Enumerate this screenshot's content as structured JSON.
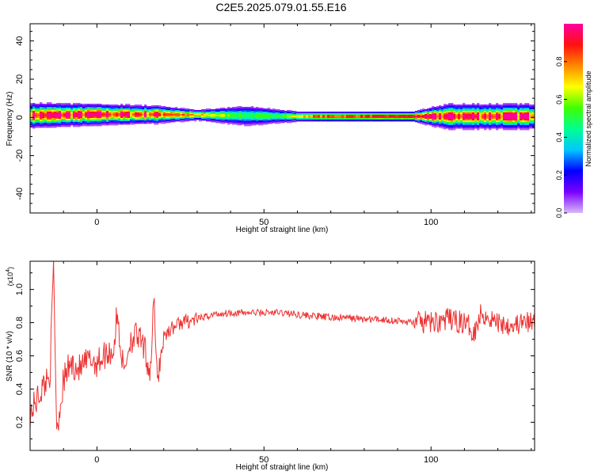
{
  "title": "C2E5.2025.079.01.55.E16",
  "colors": {
    "snr_line": "#ee3333",
    "colormap": [
      "#d8b8f8",
      "#7a00ff",
      "#0000ff",
      "#00c8ff",
      "#00ff90",
      "#40ff00",
      "#ffff00",
      "#ff8800",
      "#ff1010",
      "#ff00a0"
    ]
  },
  "chart_data": [
    {
      "type": "heatmap",
      "xlabel": "Height of straight line (km)",
      "ylabel": "Frequency (Hz)",
      "xlim": [
        -20,
        131
      ],
      "ylim": [
        -50,
        49
      ],
      "xticks": [
        0,
        50,
        100
      ],
      "yticks": [
        -40,
        -20,
        0,
        20,
        40
      ],
      "colorbar": {
        "label": "Normalized spectral amplitude",
        "range": [
          0.0,
          1.0
        ],
        "ticks": [
          "0.0",
          "0.2",
          "0.4",
          "0.6",
          "0.8"
        ]
      },
      "description_points": {
        "ridge_frequency_hz": [
          {
            "x": -20,
            "f": 1.0
          },
          {
            "x": 0,
            "f": 1.5
          },
          {
            "x": 20,
            "f": 1.5
          },
          {
            "x": 40,
            "f": 1.0
          },
          {
            "x": 60,
            "f": 0.5
          },
          {
            "x": 80,
            "f": 0.5
          },
          {
            "x": 100,
            "f": 0.5
          },
          {
            "x": 131,
            "f": 0.5
          }
        ],
        "peak_amplitude": [
          {
            "x": -20,
            "a": 0.95
          },
          {
            "x": 0,
            "a": 0.95
          },
          {
            "x": 20,
            "a": 0.9
          },
          {
            "x": 30,
            "a": 0.75
          },
          {
            "x": 45,
            "a": 0.5
          },
          {
            "x": 55,
            "a": 0.55
          },
          {
            "x": 65,
            "a": 0.85
          },
          {
            "x": 90,
            "a": 0.95
          },
          {
            "x": 131,
            "a": 0.95
          }
        ],
        "spread_hz": [
          {
            "x": -20,
            "s": 7
          },
          {
            "x": 18,
            "s": 5
          },
          {
            "x": 30,
            "s": 3
          },
          {
            "x": 45,
            "s": 6
          },
          {
            "x": 60,
            "s": 3
          },
          {
            "x": 95,
            "s": 3
          },
          {
            "x": 105,
            "s": 7
          },
          {
            "x": 131,
            "s": 7
          }
        ]
      }
    },
    {
      "type": "line",
      "xlabel": "Height of straight line (km)",
      "ylabel": "SNR (10 * v/v)",
      "y_multiplier": "(x10",
      "y_multiplier_exp": "4",
      "y_multiplier_close": ")",
      "xlim": [
        -20,
        131
      ],
      "ylim": [
        0.03,
        1.17
      ],
      "xticks": [
        0,
        50,
        100
      ],
      "yticks": [
        0.2,
        0.4,
        0.6,
        0.8,
        1.0
      ],
      "series": [
        {
          "x": [
            -20,
            -17,
            -14,
            -13,
            -12,
            -10,
            -8,
            -5,
            -2,
            0,
            3,
            5,
            6,
            8,
            10,
            12,
            14,
            16,
            17,
            18,
            20,
            22,
            25,
            30,
            35,
            40,
            45,
            50,
            55,
            60,
            65,
            70,
            75,
            80,
            85,
            90,
            95,
            100,
            105,
            110,
            113,
            115,
            120,
            125,
            131
          ],
          "y": [
            0.25,
            0.38,
            0.5,
            1.15,
            0.15,
            0.45,
            0.55,
            0.52,
            0.58,
            0.56,
            0.62,
            0.63,
            0.85,
            0.5,
            0.7,
            0.72,
            0.65,
            0.5,
            0.95,
            0.45,
            0.72,
            0.76,
            0.8,
            0.82,
            0.85,
            0.86,
            0.86,
            0.86,
            0.86,
            0.85,
            0.84,
            0.83,
            0.83,
            0.82,
            0.82,
            0.81,
            0.8,
            0.8,
            0.82,
            0.8,
            0.75,
            0.86,
            0.8,
            0.79,
            0.8
          ]
        }
      ]
    }
  ]
}
